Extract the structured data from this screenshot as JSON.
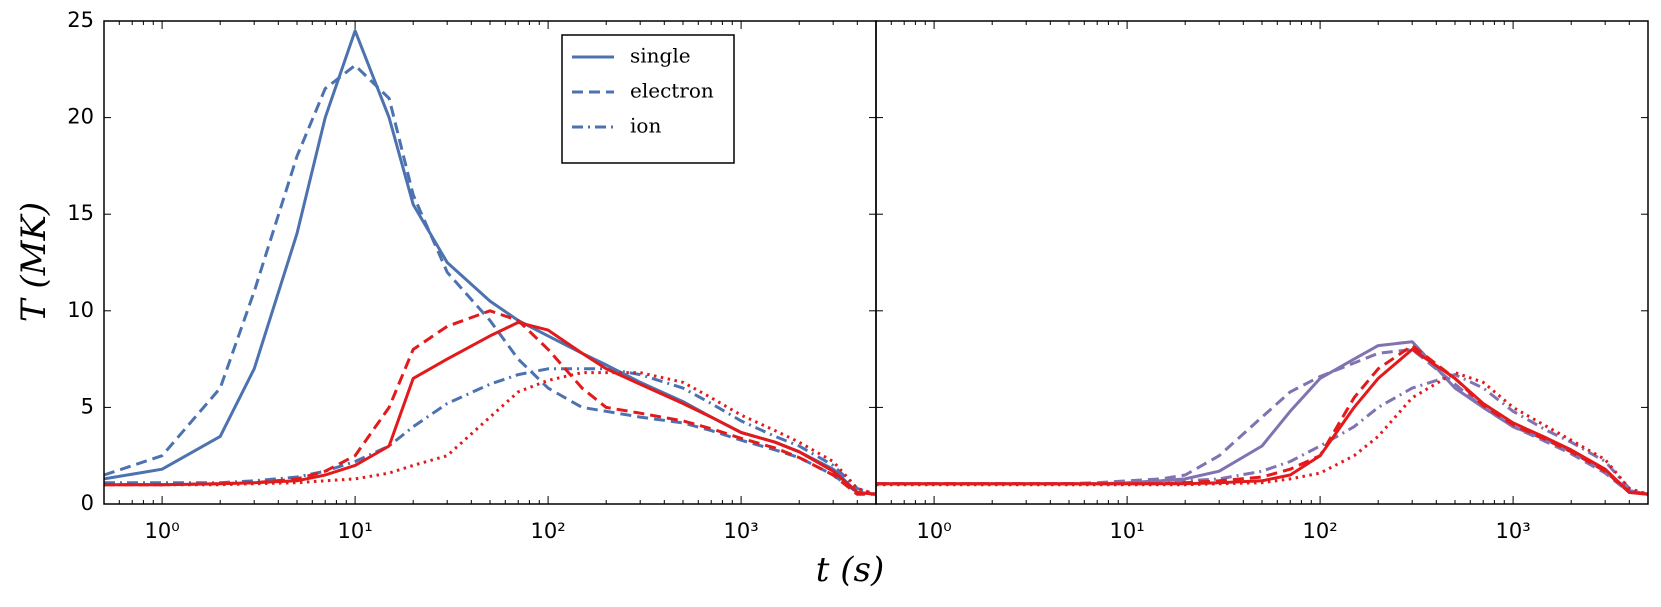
{
  "xlabel": "t (s)",
  "ylabel": "T (MK)",
  "chart_data": [
    {
      "type": "line",
      "xscale": "log",
      "legend": "upper right",
      "xlim": [
        0.5,
        5000
      ],
      "ylim": [
        0,
        25
      ],
      "xticks": [
        {
          "value": 1,
          "label": "10⁰"
        },
        {
          "value": 10,
          "label": "10¹"
        },
        {
          "value": 100,
          "label": "10²"
        },
        {
          "value": 1000,
          "label": "10³"
        }
      ],
      "yticks": [
        0,
        5,
        10,
        15,
        20,
        25
      ],
      "x": [
        0.5,
        1,
        2,
        3,
        5,
        7,
        10,
        15,
        20,
        30,
        50,
        70,
        100,
        150,
        200,
        300,
        500,
        700,
        1000,
        1500,
        2000,
        3000,
        4000,
        5000
      ],
      "series": [
        {
          "name": "single",
          "color": "#4c72b0",
          "style": "solid",
          "values": [
            1.3,
            1.8,
            3.5,
            7,
            14,
            20,
            24.5,
            20,
            15.5,
            12.5,
            10.5,
            9.5,
            8.7,
            7.8,
            7.2,
            6.3,
            5.3,
            4.5,
            3.7,
            3.2,
            2.7,
            1.8,
            0.6,
            0.5
          ]
        },
        {
          "name": "electron",
          "color": "#4c72b0",
          "style": "dashed",
          "values": [
            1.5,
            2.5,
            6,
            11,
            18,
            21.5,
            22.7,
            21,
            16,
            12,
            9.5,
            7.5,
            6,
            5,
            4.8,
            4.5,
            4.2,
            3.8,
            3.3,
            2.8,
            2.4,
            1.5,
            0.6,
            0.5
          ]
        },
        {
          "name": "ion",
          "color": "#4c72b0",
          "style": "dashdot",
          "values": [
            1.1,
            1.1,
            1.1,
            1.2,
            1.4,
            1.7,
            2.2,
            3,
            4,
            5.2,
            6.2,
            6.7,
            7,
            7,
            7,
            6.7,
            6,
            5.2,
            4.3,
            3.5,
            3,
            2,
            0.8,
            0.5
          ]
        },
        {
          "color": "#e31a1c",
          "style": "solid",
          "values": [
            1,
            1,
            1.05,
            1.1,
            1.2,
            1.5,
            2,
            3,
            6.5,
            7.5,
            8.7,
            9.4,
            9,
            7.8,
            7,
            6.2,
            5.2,
            4.5,
            3.7,
            3.2,
            2.7,
            1.7,
            0.6,
            0.5
          ]
        },
        {
          "color": "#e31a1c",
          "style": "dashed",
          "values": [
            1,
            1,
            1.05,
            1.1,
            1.3,
            1.7,
            2.5,
            5,
            8,
            9.2,
            10,
            9.5,
            8,
            6,
            5,
            4.7,
            4.3,
            3.9,
            3.4,
            2.9,
            2.4,
            1.5,
            0.5,
            0.5
          ]
        },
        {
          "color": "#e31a1c",
          "style": "dotted",
          "values": [
            1,
            1,
            1,
            1.05,
            1.1,
            1.2,
            1.3,
            1.6,
            2,
            2.5,
            4.5,
            5.8,
            6.4,
            6.8,
            6.8,
            6.8,
            6.3,
            5.5,
            4.6,
            3.8,
            3.2,
            2.2,
            0.8,
            0.5
          ]
        }
      ]
    },
    {
      "type": "line",
      "xscale": "log",
      "sharey": true,
      "xlim": [
        0.5,
        5000
      ],
      "ylim": [
        0,
        25
      ],
      "xticks": [
        {
          "value": 1,
          "label": "10⁰"
        },
        {
          "value": 10,
          "label": "10¹"
        },
        {
          "value": 100,
          "label": "10²"
        },
        {
          "value": 1000,
          "label": "10³"
        }
      ],
      "x": [
        0.5,
        1,
        2,
        3,
        5,
        7,
        10,
        15,
        20,
        30,
        50,
        70,
        100,
        150,
        200,
        300,
        500,
        700,
        1000,
        1500,
        2000,
        3000,
        4000,
        5000
      ],
      "series": [
        {
          "color": "#8172b2",
          "style": "solid",
          "values": [
            1.05,
            1.05,
            1.05,
            1.05,
            1.05,
            1.05,
            1.1,
            1.2,
            1.3,
            1.7,
            3,
            4.8,
            6.5,
            7.5,
            8.2,
            8.4,
            6,
            5,
            4,
            3.3,
            2.7,
            1.7,
            0.7,
            0.5
          ]
        },
        {
          "color": "#8172b2",
          "style": "dashed",
          "values": [
            1.05,
            1.05,
            1.05,
            1.05,
            1.05,
            1.1,
            1.2,
            1.3,
            1.5,
            2.5,
            4.5,
            5.8,
            6.6,
            7.3,
            7.8,
            8,
            6.2,
            5,
            4,
            3.2,
            2.6,
            1.6,
            0.6,
            0.5
          ]
        },
        {
          "color": "#8172b2",
          "style": "dashdot",
          "values": [
            1.05,
            1.05,
            1.05,
            1.05,
            1.05,
            1.05,
            1.05,
            1.1,
            1.2,
            1.3,
            1.7,
            2.2,
            3,
            4,
            5,
            6,
            6.7,
            6,
            4.8,
            3.8,
            3.2,
            2.2,
            0.8,
            0.5
          ]
        },
        {
          "color": "#e31a1c",
          "style": "solid",
          "values": [
            1.05,
            1.05,
            1.05,
            1.05,
            1.05,
            1.05,
            1.05,
            1.05,
            1.05,
            1.1,
            1.2,
            1.5,
            2.5,
            5,
            6.5,
            8,
            6.5,
            5.2,
            4.2,
            3.4,
            2.8,
            1.8,
            0.6,
            0.5
          ]
        },
        {
          "color": "#e31a1c",
          "style": "dashed",
          "values": [
            1.05,
            1.05,
            1.05,
            1.05,
            1.05,
            1.05,
            1.05,
            1.05,
            1.1,
            1.2,
            1.4,
            1.8,
            2.5,
            5.5,
            7,
            8.2,
            6.5,
            5.1,
            4.1,
            3.3,
            2.7,
            1.7,
            0.6,
            0.5
          ]
        },
        {
          "color": "#e31a1c",
          "style": "dotted",
          "values": [
            1,
            1,
            1,
            1,
            1,
            1,
            1,
            1,
            1,
            1.05,
            1.1,
            1.3,
            1.6,
            2.5,
            3.5,
            5.5,
            6.8,
            6.3,
            5,
            4,
            3.3,
            2.3,
            0.8,
            0.5
          ]
        }
      ]
    }
  ]
}
